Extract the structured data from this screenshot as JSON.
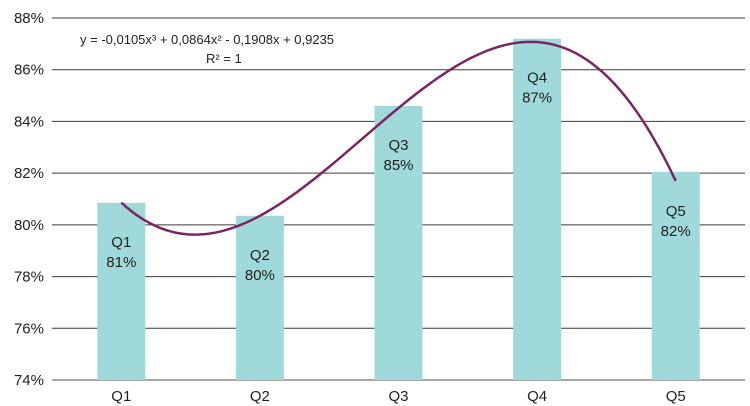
{
  "chart_data": {
    "type": "bar",
    "categories": [
      "Q1",
      "Q2",
      "Q3",
      "Q4",
      "Q5"
    ],
    "values": [
      80.85,
      80.35,
      84.6,
      87.2,
      82.05
    ],
    "data_labels": [
      {
        "name": "Q1",
        "value": "81%"
      },
      {
        "name": "Q2",
        "value": "80%"
      },
      {
        "name": "Q3",
        "value": "85%"
      },
      {
        "name": "Q4",
        "value": "87%"
      },
      {
        "name": "Q5",
        "value": "82%"
      }
    ],
    "ylim": [
      74,
      88
    ],
    "yticks": [
      74,
      76,
      78,
      80,
      82,
      84,
      86,
      88
    ],
    "ytick_labels": [
      "74%",
      "76%",
      "78%",
      "80%",
      "82%",
      "84%",
      "86%",
      "88%"
    ],
    "grid": true,
    "bar_color": "#a0d9d9",
    "trendline": {
      "type": "polynomial",
      "order": 3,
      "coefficients": [
        -0.0105,
        0.0864,
        -0.1908,
        0.9235
      ],
      "color": "#7b2566",
      "equation": "y = -0,0105x³ + 0,0864x² - 0,1908x + 0,9235",
      "r_squared": "R² = 1"
    }
  }
}
